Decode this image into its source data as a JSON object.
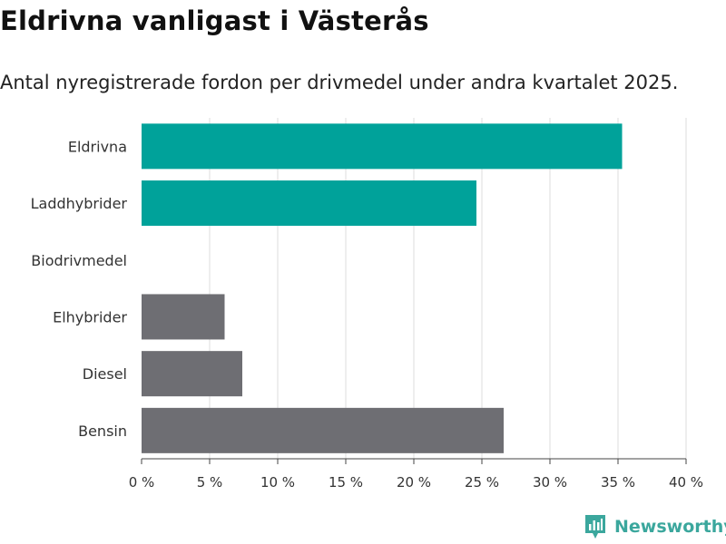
{
  "title": "Eldrivna vanligast i Västerås",
  "subtitle": "Antal nyregistrerade fordon per drivmedel under andra kvartalet 2025.",
  "brand": {
    "name": "Newsworthy",
    "icon": "newsworthy-logo-icon"
  },
  "colors": {
    "accent": "#00a29a",
    "neutral": "#6e6e73",
    "grid": "#dddddd"
  },
  "chart_data": {
    "type": "bar",
    "orientation": "horizontal",
    "categories": [
      "Eldrivna",
      "Laddhybrider",
      "Biodrivmedel",
      "Elhybrider",
      "Diesel",
      "Bensin"
    ],
    "values": [
      35.3,
      24.6,
      0,
      6.1,
      7.4,
      26.6
    ],
    "bar_colors": [
      "#00a29a",
      "#00a29a",
      "#00a29a",
      "#6e6e73",
      "#6e6e73",
      "#6e6e73"
    ],
    "xlim": [
      0,
      40
    ],
    "xticks": [
      0,
      5,
      10,
      15,
      20,
      25,
      30,
      35,
      40
    ],
    "xtick_labels": [
      "0 %",
      "5 %",
      "10 %",
      "15 %",
      "20 %",
      "25 %",
      "30 %",
      "35 %",
      "40 %"
    ],
    "grid": "vertical",
    "legend": "none"
  }
}
